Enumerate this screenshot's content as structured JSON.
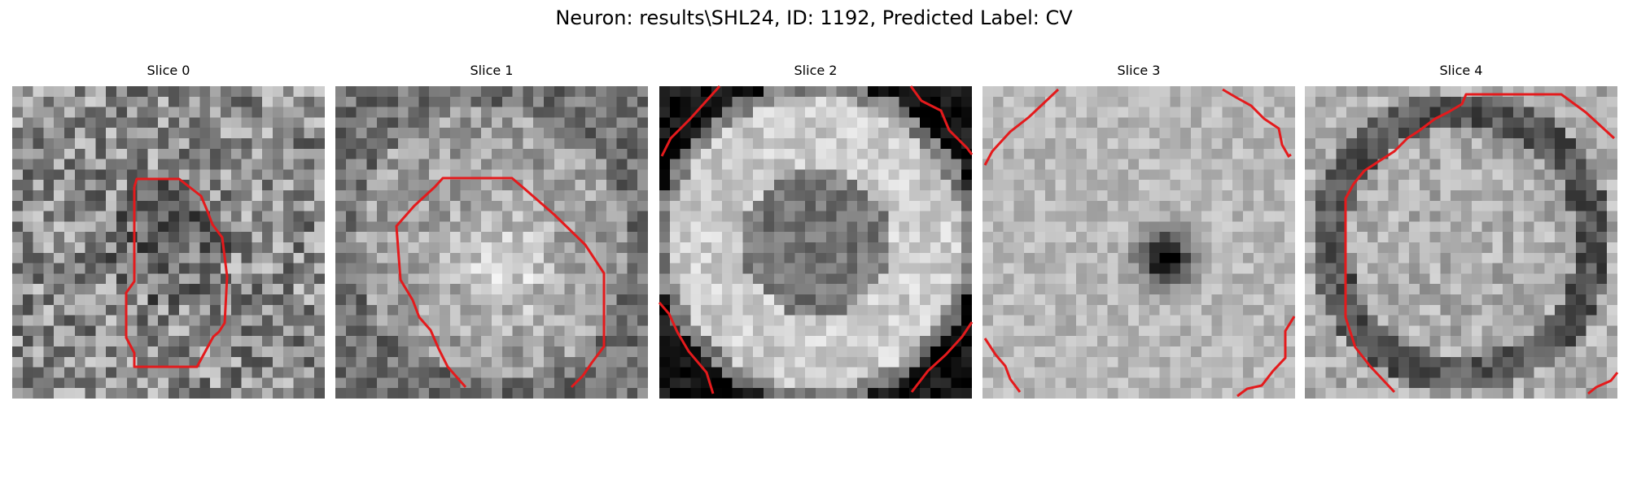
{
  "figure": {
    "title": "Neuron: results\\SHL24, ID: 1192, Predicted Label: CV"
  },
  "panels": [
    {
      "title": "Slice 0",
      "pattern": "noise"
    },
    {
      "title": "Slice 1",
      "pattern": "blob"
    },
    {
      "title": "Slice 2",
      "pattern": "ring-bright"
    },
    {
      "title": "Slice 3",
      "pattern": "dark-center"
    },
    {
      "title": "Slice 4",
      "pattern": "ring-dark"
    }
  ],
  "contour_color": "#e41a1c",
  "colormap": "gray"
}
